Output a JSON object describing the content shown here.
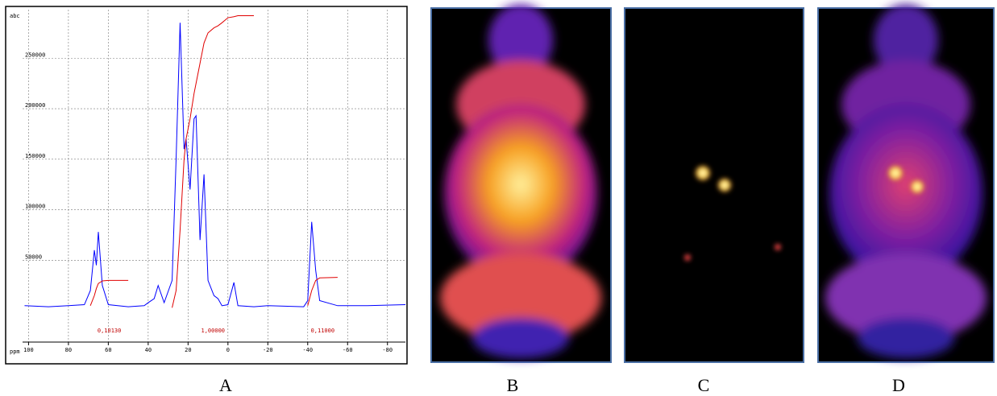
{
  "chart_data": {
    "type": "line",
    "xlabel": "ppm",
    "ylabel": "abc",
    "x": [
      102,
      90,
      80,
      72,
      69,
      67,
      66,
      65,
      63,
      60,
      50,
      42,
      40,
      37,
      35,
      32,
      28,
      26,
      24,
      22,
      21,
      19,
      17,
      16,
      14,
      12,
      10,
      7,
      5,
      3,
      0,
      -3,
      -5,
      -13,
      -20,
      -38,
      -40,
      -42,
      -44,
      -46,
      -55,
      -70,
      -89
    ],
    "series": [
      {
        "color": "#0000ff",
        "values": [
          5000,
          4000,
          5000,
          6000,
          20000,
          60000,
          45000,
          78000,
          25000,
          6000,
          4000,
          5000,
          8000,
          12000,
          25000,
          8000,
          30000,
          150000,
          285000,
          160000,
          170000,
          120000,
          190000,
          193000,
          70000,
          135000,
          30000,
          15000,
          12000,
          5000,
          6000,
          28000,
          5000,
          4000,
          5000,
          4000,
          10000,
          88000,
          40000,
          10000,
          5000,
          5000,
          6000
        ]
      },
      {
        "color": "#e00000",
        "values": [
          null,
          null,
          null,
          null,
          5000,
          15000,
          22000,
          27000,
          29500,
          30000,
          30000,
          null,
          null,
          null,
          null,
          null,
          3000,
          20000,
          80000,
          150000,
          170000,
          190000,
          215000,
          225000,
          245000,
          265000,
          275000,
          280000,
          282000,
          285000,
          290000,
          291000,
          292000,
          292000,
          null,
          null,
          5000,
          20000,
          30000,
          32500,
          33000,
          null,
          null
        ]
      }
    ],
    "annotations": [
      "0,10130",
      "1,00000",
      "0,11000"
    ],
    "xlim": [
      103,
      -89
    ],
    "ylim": [
      -31000,
      298000
    ],
    "xticks": [
      100,
      80,
      60,
      40,
      20,
      0,
      -20,
      -40,
      -60,
      -80
    ],
    "yticks": [
      50000,
      100000,
      150000,
      200000,
      250000
    ],
    "grid": true
  },
  "panels": [
    "A",
    "B",
    "C",
    "D"
  ]
}
